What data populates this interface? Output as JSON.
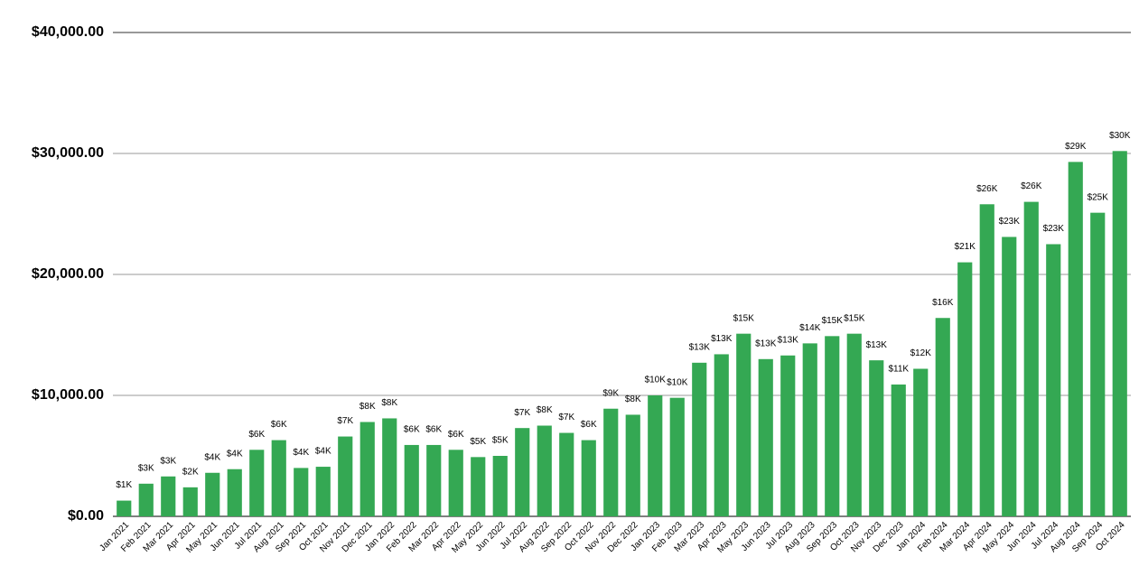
{
  "chart_data": {
    "type": "bar",
    "categories": [
      "Jan 2021",
      "Feb 2021",
      "Mar 2021",
      "Apr 2021",
      "May 2021",
      "Jun 2021",
      "Jul 2021",
      "Aug 2021",
      "Sep 2021",
      "Oct 2021",
      "Nov 2021",
      "Dec 2021",
      "Jan 2022",
      "Feb 2022",
      "Mar 2022",
      "Apr 2022",
      "May 2022",
      "Jun 2022",
      "Jul 2022",
      "Aug 2022",
      "Sep 2022",
      "Oct 2022",
      "Nov 2022",
      "Dec 2022",
      "Jan 2023",
      "Feb 2023",
      "Mar 2023",
      "Apr 2023",
      "May 2023",
      "Jun 2023",
      "Jul 2023",
      "Aug 2023",
      "Sep 2023",
      "Oct 2023",
      "Nov 2023",
      "Dec 2023",
      "Jan 2024",
      "Feb 2024",
      "Mar 2024",
      "Apr 2024",
      "May 2024",
      "Jun 2024",
      "Jul 2024",
      "Aug 2024",
      "Sep 2024",
      "Oct 2024"
    ],
    "values": [
      1300,
      2700,
      3300,
      2400,
      3600,
      3900,
      5500,
      6300,
      4000,
      4100,
      6600,
      7800,
      8100,
      5900,
      5900,
      5500,
      4900,
      5000,
      7300,
      7500,
      6900,
      6300,
      8900,
      8400,
      10000,
      9800,
      12700,
      13400,
      15100,
      13000,
      13300,
      14300,
      14900,
      15100,
      12900,
      10900,
      12200,
      16400,
      21000,
      25800,
      23100,
      26000,
      22500,
      29300,
      25100,
      30200
    ],
    "value_labels": [
      "$1K",
      "$3K",
      "$3K",
      "$2K",
      "$4K",
      "$4K",
      "$6K",
      "$6K",
      "$4K",
      "$4K",
      "$7K",
      "$8K",
      "$8K",
      "$6K",
      "$6K",
      "$6K",
      "$5K",
      "$5K",
      "$7K",
      "$8K",
      "$7K",
      "$6K",
      "$9K",
      "$8K",
      "$10K",
      "$10K",
      "$13K",
      "$13K",
      "$15K",
      "$13K",
      "$13K",
      "$14K",
      "$15K",
      "$15K",
      "$13K",
      "$11K",
      "$12K",
      "$16K",
      "$21K",
      "$26K",
      "$23K",
      "$26K",
      "$23K",
      "$29K",
      "$25K",
      "$30K"
    ],
    "color": "#34a853",
    "ylim": [
      0,
      40000
    ],
    "yticks": [
      {
        "value": 0,
        "label": "$0.00"
      },
      {
        "value": 10000,
        "label": "$10,000.00"
      },
      {
        "value": 20000,
        "label": "$20,000.00"
      },
      {
        "value": 30000,
        "label": "$30,000.00"
      },
      {
        "value": 40000,
        "label": "$40,000.00"
      }
    ],
    "grid": true
  }
}
